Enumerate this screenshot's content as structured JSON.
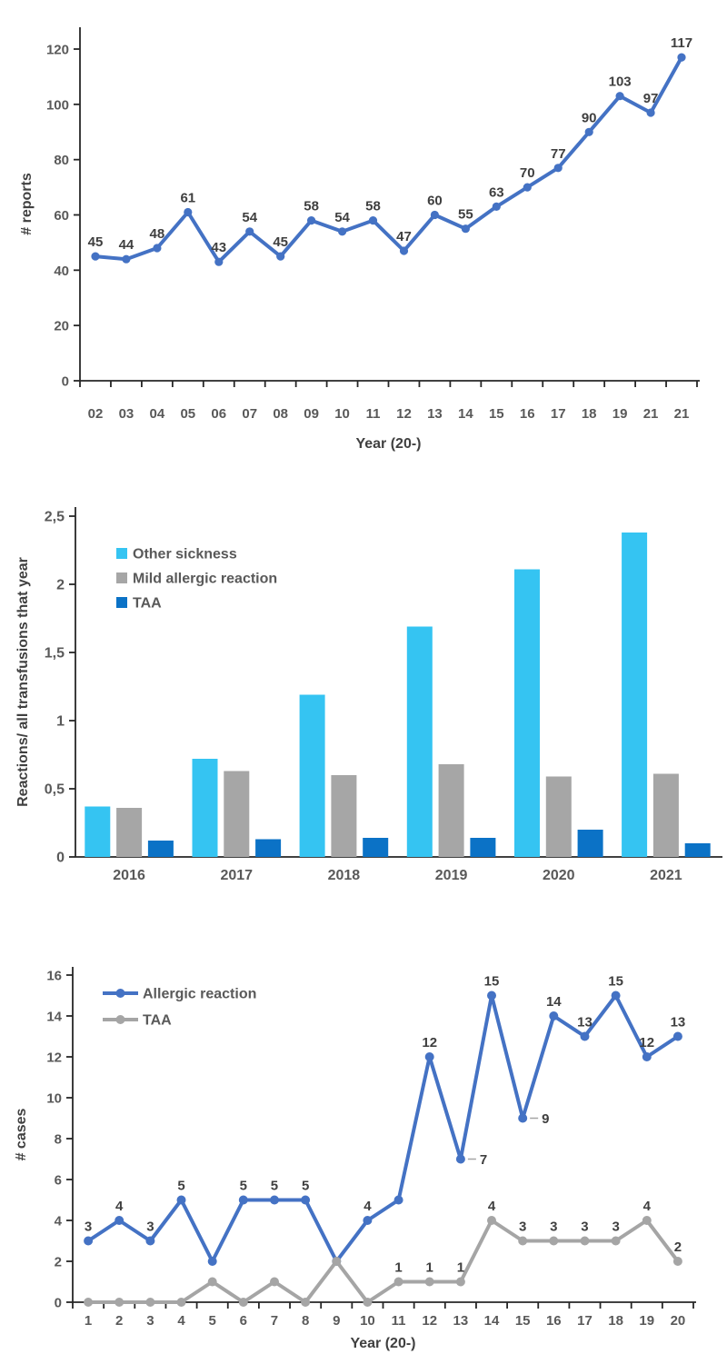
{
  "page": {
    "background": "#FFFFFF"
  },
  "styles": {
    "axis_color": "#262626",
    "tick_label_color": "#595959",
    "data_label_color": "#3F3F3F",
    "axis_title_color": "#404040",
    "legend_text_color": "#595959",
    "leader_line_color": "#A5A5A5"
  },
  "chart_data": [
    {
      "id": "chart-reports",
      "type": "line",
      "title": "",
      "xlabel": "Year (20-)",
      "ylabel": "# reports",
      "ylim": [
        0,
        120
      ],
      "grid": false,
      "legend": null,
      "yticks": [
        {
          "v": 0,
          "label": "0"
        },
        {
          "v": 20,
          "label": "20"
        },
        {
          "v": 40,
          "label": "40"
        },
        {
          "v": 60,
          "label": "60"
        },
        {
          "v": 80,
          "label": "80"
        },
        {
          "v": 100,
          "label": "100"
        },
        {
          "v": 120,
          "label": "120"
        }
      ],
      "categories": [
        "02",
        "03",
        "04",
        "05",
        "06",
        "07",
        "08",
        "09",
        "10",
        "11",
        "12",
        "13",
        "14",
        "15",
        "16",
        "17",
        "18",
        "19",
        "21",
        "21"
      ],
      "series": [
        {
          "name": "# reports",
          "color": "#4472C4",
          "values": [
            45,
            44,
            48,
            61,
            43,
            54,
            45,
            58,
            54,
            58,
            47,
            60,
            55,
            63,
            70,
            77,
            90,
            103,
            97,
            117
          ],
          "labels": [
            "45",
            "44",
            "48",
            "61",
            "43",
            "54",
            "45",
            "58",
            "54",
            "58",
            "47",
            "60",
            "55",
            "63",
            "70",
            "77",
            "90",
            "103",
            "97",
            "117"
          ]
        }
      ]
    },
    {
      "id": "chart-reactions",
      "type": "bar",
      "title": "",
      "xlabel": "",
      "ylabel": "Reactions/ all transfusions that year",
      "ylim": [
        0,
        2.5
      ],
      "grid": false,
      "legend": {
        "position": "top-left"
      },
      "yticks": [
        {
          "v": 0,
          "label": "0"
        },
        {
          "v": 0.5,
          "label": "0,5"
        },
        {
          "v": 1,
          "label": "1"
        },
        {
          "v": 1.5,
          "label": "1,5"
        },
        {
          "v": 2,
          "label": "2"
        },
        {
          "v": 2.5,
          "label": "2,5"
        }
      ],
      "categories": [
        "2016",
        "2017",
        "2018",
        "2019",
        "2020",
        "2021"
      ],
      "series": [
        {
          "name": "Other sickness",
          "color": "#35C4F2",
          "values": [
            0.37,
            0.72,
            1.19,
            1.69,
            2.11,
            2.38
          ]
        },
        {
          "name": "Mild allergic reaction",
          "color": "#A6A6A6",
          "values": [
            0.36,
            0.63,
            0.6,
            0.68,
            0.59,
            0.61
          ]
        },
        {
          "name": "TAA",
          "color": "#0B72C6",
          "values": [
            0.12,
            0.13,
            0.14,
            0.14,
            0.2,
            0.1
          ]
        }
      ]
    },
    {
      "id": "chart-cases",
      "type": "line",
      "title": "",
      "xlabel": "Year (20-)",
      "ylabel": "# cases",
      "ylim": [
        0,
        16
      ],
      "grid": false,
      "legend": {
        "position": "top-left"
      },
      "yticks": [
        {
          "v": 0,
          "label": "0"
        },
        {
          "v": 2,
          "label": "2"
        },
        {
          "v": 4,
          "label": "4"
        },
        {
          "v": 6,
          "label": "6"
        },
        {
          "v": 8,
          "label": "8"
        },
        {
          "v": 10,
          "label": "10"
        },
        {
          "v": 12,
          "label": "12"
        },
        {
          "v": 14,
          "label": "14"
        },
        {
          "v": 16,
          "label": "16"
        }
      ],
      "categories": [
        "1",
        "2",
        "3",
        "4",
        "5",
        "6",
        "7",
        "8",
        "9",
        "10",
        "11",
        "12",
        "13",
        "14",
        "15",
        "16",
        "17",
        "18",
        "19",
        "20"
      ],
      "series": [
        {
          "name": "Allergic reaction",
          "color": "#4472C4",
          "values": [
            3,
            4,
            3,
            5,
            2,
            5,
            5,
            5,
            2,
            4,
            5,
            12,
            7,
            15,
            9,
            14,
            13,
            15,
            12,
            13
          ],
          "labels": [
            "3",
            "4",
            "3",
            "5",
            null,
            "5",
            "5",
            "5",
            null,
            "4",
            null,
            "12",
            {
              "text": "7",
              "pos": "right"
            },
            "15",
            {
              "text": "9",
              "pos": "right"
            },
            "14",
            "13",
            "15",
            "12",
            "13"
          ]
        },
        {
          "name": "TAA",
          "color": "#A5A5A5",
          "values": [
            0,
            0,
            0,
            0,
            1,
            0,
            1,
            0,
            2,
            0,
            1,
            1,
            1,
            4,
            3,
            3,
            3,
            3,
            4,
            2
          ],
          "labels": [
            null,
            null,
            null,
            null,
            null,
            null,
            null,
            null,
            null,
            null,
            "1",
            "1",
            "1",
            "4",
            "3",
            "3",
            "3",
            "3",
            "4",
            "2"
          ]
        }
      ]
    }
  ]
}
